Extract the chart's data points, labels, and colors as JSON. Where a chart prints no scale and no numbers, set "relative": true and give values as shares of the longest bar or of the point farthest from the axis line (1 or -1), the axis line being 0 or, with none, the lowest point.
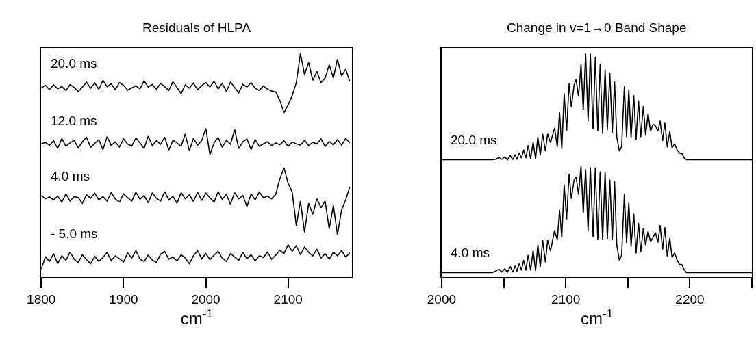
{
  "chart_data": [
    {
      "type": "line",
      "title": "Residuals of HLPA",
      "xlabel": "cm$^{-1}$",
      "relative": true,
      "grid": false,
      "legend": false,
      "tick_labels": "x",
      "marker": "none",
      "line_style": "solid",
      "xlim": [
        1800,
        2178
      ],
      "xticks": [
        1800,
        1900,
        2000,
        2100
      ],
      "x": [
        1800,
        1805,
        1810,
        1815,
        1820,
        1825,
        1830,
        1835,
        1840,
        1845,
        1850,
        1855,
        1860,
        1865,
        1870,
        1875,
        1880,
        1885,
        1890,
        1895,
        1900,
        1905,
        1910,
        1915,
        1920,
        1925,
        1930,
        1935,
        1940,
        1945,
        1950,
        1955,
        1960,
        1965,
        1970,
        1975,
        1980,
        1985,
        1990,
        1995,
        2000,
        2005,
        2010,
        2015,
        2020,
        2025,
        2030,
        2035,
        2040,
        2045,
        2050,
        2055,
        2060,
        2065,
        2070,
        2075,
        2080,
        2085,
        2090,
        2095,
        2100,
        2105,
        2110,
        2115,
        2120,
        2125,
        2130,
        2135,
        2140,
        2145,
        2150,
        2155,
        2160,
        2165,
        2170,
        2175
      ],
      "series": [
        {
          "name": "20.0 ms",
          "color": "#000000",
          "values": [
            0.846,
            0.858,
            0.838,
            0.86,
            0.842,
            0.852,
            0.834,
            0.861,
            0.848,
            0.83,
            0.85,
            0.872,
            0.845,
            0.868,
            0.84,
            0.88,
            0.852,
            0.864,
            0.838,
            0.87,
            0.858,
            0.836,
            0.846,
            0.855,
            0.842,
            0.878,
            0.85,
            0.862,
            0.84,
            0.866,
            0.852,
            0.835,
            0.874,
            0.848,
            0.82,
            0.86,
            0.845,
            0.868,
            0.838,
            0.856,
            0.87,
            0.85,
            0.876,
            0.842,
            0.866,
            0.83,
            0.872,
            0.848,
            0.824,
            0.862,
            0.85,
            0.87,
            0.845,
            0.835,
            0.855,
            0.84,
            0.832,
            0.828,
            0.79,
            0.735,
            0.77,
            0.812,
            0.87,
            1.0,
            0.905,
            0.96,
            0.88,
            0.92,
            0.87,
            0.89,
            0.95,
            0.89,
            0.975,
            0.9,
            0.93,
            0.875
          ]
        },
        {
          "name": "12.0 ms",
          "color": "#000000",
          "values": [
            0.596,
            0.602,
            0.59,
            0.61,
            0.575,
            0.62,
            0.585,
            0.6,
            0.612,
            0.578,
            0.605,
            0.625,
            0.58,
            0.598,
            0.615,
            0.57,
            0.628,
            0.59,
            0.604,
            0.582,
            0.618,
            0.595,
            0.586,
            0.622,
            0.6,
            0.575,
            0.63,
            0.588,
            0.61,
            0.594,
            0.626,
            0.568,
            0.612,
            0.6,
            0.585,
            0.64,
            0.565,
            0.62,
            0.59,
            0.61,
            0.665,
            0.548,
            0.6,
            0.625,
            0.58,
            0.612,
            0.594,
            0.66,
            0.575,
            0.605,
            0.618,
            0.57,
            0.615,
            0.585,
            0.596,
            0.605,
            0.588,
            0.6,
            0.592,
            0.61,
            0.585,
            0.604,
            0.596,
            0.59,
            0.612,
            0.588,
            0.603,
            0.595,
            0.618,
            0.584,
            0.606,
            0.592,
            0.615,
            0.59,
            0.62,
            0.6
          ]
        },
        {
          "name": "4.0 ms",
          "color": "#000000",
          "values": [
            0.365,
            0.35,
            0.358,
            0.345,
            0.362,
            0.335,
            0.372,
            0.34,
            0.36,
            0.355,
            0.33,
            0.368,
            0.352,
            0.375,
            0.345,
            0.36,
            0.34,
            0.378,
            0.35,
            0.335,
            0.372,
            0.355,
            0.34,
            0.38,
            0.348,
            0.365,
            0.332,
            0.376,
            0.352,
            0.34,
            0.382,
            0.345,
            0.362,
            0.33,
            0.378,
            0.35,
            0.368,
            0.338,
            0.38,
            0.342,
            0.375,
            0.355,
            0.335,
            0.382,
            0.348,
            0.37,
            0.325,
            0.378,
            0.35,
            0.365,
            0.315,
            0.372,
            0.345,
            0.38,
            0.355,
            0.362,
            0.35,
            0.37,
            0.44,
            0.489,
            0.42,
            0.38,
            0.23,
            0.34,
            0.2,
            0.33,
            0.28,
            0.35,
            0.31,
            0.34,
            0.215,
            0.32,
            0.19,
            0.3,
            0.345,
            0.403
          ]
        },
        {
          "name": "- 5.0 ms",
          "color": "#000000",
          "values": [
            0.036,
            0.09,
            0.07,
            0.105,
            0.06,
            0.095,
            0.075,
            0.112,
            0.08,
            0.065,
            0.1,
            0.078,
            0.06,
            0.092,
            0.07,
            0.088,
            0.11,
            0.074,
            0.095,
            0.082,
            0.068,
            0.108,
            0.085,
            0.118,
            0.08,
            0.07,
            0.098,
            0.076,
            0.065,
            0.102,
            0.114,
            0.08,
            0.09,
            0.072,
            0.1,
            0.085,
            0.06,
            0.095,
            0.118,
            0.082,
            0.105,
            0.078,
            0.098,
            0.115,
            0.085,
            0.07,
            0.105,
            0.09,
            0.075,
            0.11,
            0.082,
            0.1,
            0.072,
            0.095,
            0.088,
            0.112,
            0.08,
            0.098,
            0.12,
            0.105,
            0.145,
            0.115,
            0.14,
            0.1,
            0.135,
            0.11,
            0.095,
            0.125,
            0.085,
            0.105,
            0.08,
            0.11,
            0.095,
            0.118,
            0.09,
            0.108
          ]
        }
      ]
    },
    {
      "type": "line",
      "title": "Change in v=1→0 Band Shape",
      "xlabel": "cm$^{-1}$",
      "relative": true,
      "grid": false,
      "legend": false,
      "tick_labels": "x",
      "marker": "none",
      "line_style": "solid",
      "xlim": [
        2000,
        2250
      ],
      "xticks": [
        2000,
        2100,
        2200,
        {
          "value": 2050,
          "label": null
        },
        {
          "value": 2150,
          "label": null
        },
        {
          "value": 2250,
          "label": null
        }
      ],
      "x": [
        2000,
        2040.9,
        2043.6,
        2046.3,
        2048.5,
        2050.8,
        2053.0,
        2055.3,
        2057.3,
        2059.3,
        2060.7,
        2062.5,
        2064.3,
        2066.1,
        2067.9,
        2069.7,
        2071.7,
        2073.7,
        2075.7,
        2077.5,
        2079.5,
        2081.4,
        2083.6,
        2085.4,
        2087.7,
        2091.0,
        2093.2,
        2095.0,
        2096.8,
        2098.7,
        2100.7,
        2102.7,
        2104.5,
        2106.7,
        2108.3,
        2110.3,
        2112.3,
        2114.1,
        2116.0,
        2118.0,
        2119.8,
        2122.0,
        2123.8,
        2125.8,
        2127.7,
        2129.7,
        2131.7,
        2133.5,
        2135.5,
        2137.5,
        2139.3,
        2141.1,
        2143.2,
        2145.0,
        2147.2,
        2149.0,
        2150.8,
        2152.6,
        2154.8,
        2156.6,
        2158.6,
        2160.4,
        2162.5,
        2164.3,
        2166.3,
        2168.3,
        2170.3,
        2172.3,
        2174.2,
        2176.0,
        2178.0,
        2179.8,
        2181.8,
        2183.8,
        2185.6,
        2187.7,
        2189.7,
        2191.7,
        2193.5,
        2195.5,
        2197.3,
        2250
      ],
      "series": [
        {
          "name": "20.0 ms",
          "color": "#000000",
          "values": [
            0.525,
            0.525,
            0.527,
            0.535,
            0.526,
            0.537,
            0.525,
            0.543,
            0.525,
            0.548,
            0.526,
            0.556,
            0.532,
            0.569,
            0.532,
            0.589,
            0.53,
            0.603,
            0.53,
            0.626,
            0.545,
            0.641,
            0.563,
            0.641,
            0.601,
            0.667,
            0.581,
            0.737,
            0.574,
            0.821,
            0.655,
            0.866,
            0.76,
            0.859,
            0.884,
            0.808,
            0.952,
            0.747,
            1.0,
            0.697,
            1.0,
            0.662,
            0.985,
            0.652,
            0.952,
            0.641,
            0.929,
            0.657,
            0.914,
            0.646,
            0.874,
            0.626,
            0.563,
            0.583,
            0.854,
            0.626,
            0.838,
            0.621,
            0.813,
            0.613,
            0.79,
            0.626,
            0.765,
            0.633,
            0.73,
            0.652,
            0.684,
            0.677,
            0.652,
            0.699,
            0.609,
            0.69,
            0.581,
            0.652,
            0.579,
            0.596,
            0.569,
            0.554,
            0.553,
            0.532,
            0.525,
            0.525
          ]
        },
        {
          "name": "4.0 ms",
          "color": "#000000",
          "values": [
            0.02,
            0.02,
            0.027,
            0.035,
            0.023,
            0.037,
            0.022,
            0.047,
            0.022,
            0.05,
            0.025,
            0.061,
            0.03,
            0.076,
            0.03,
            0.098,
            0.03,
            0.118,
            0.028,
            0.144,
            0.045,
            0.165,
            0.066,
            0.165,
            0.116,
            0.209,
            0.165,
            0.3,
            0.177,
            0.414,
            0.258,
            0.462,
            0.35,
            0.434,
            0.449,
            0.369,
            0.497,
            0.288,
            0.482,
            0.207,
            0.492,
            0.179,
            0.49,
            0.165,
            0.472,
            0.165,
            0.472,
            0.169,
            0.436,
            0.165,
            0.429,
            0.144,
            0.074,
            0.098,
            0.372,
            0.152,
            0.333,
            0.136,
            0.283,
            0.106,
            0.242,
            0.111,
            0.217,
            0.143,
            0.205,
            0.157,
            0.177,
            0.199,
            0.155,
            0.232,
            0.123,
            0.222,
            0.091,
            0.175,
            0.088,
            0.108,
            0.076,
            0.057,
            0.055,
            0.032,
            0.02,
            0.02
          ]
        }
      ]
    }
  ]
}
